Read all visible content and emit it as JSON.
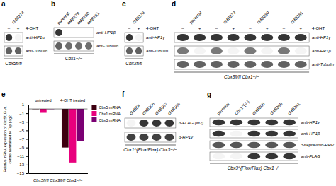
{
  "chart_data": [
    {
      "type": "blot",
      "panel": "a",
      "title": "Cbx5fl/fl",
      "categories": [
        "cMB274"
      ],
      "lane_header": "4-OHT",
      "lane_labels": [
        "–",
        "+"
      ],
      "row_labels": [
        "anti-HP1α",
        "anti-Tubulin"
      ],
      "cells": [
        [
          0.9,
          0.05
        ],
        [
          0.7,
          0.7
        ]
      ],
      "clim": [
        0,
        1
      ]
    },
    {
      "type": "blot",
      "panel": "b",
      "title": "Cbx1−/−",
      "categories": [
        "parental",
        "cMB279",
        "cMB280",
        "cMB281"
      ],
      "row_labels": [
        "anti-HP1β",
        "anti-Tubulin"
      ],
      "cells": [
        [
          0.9,
          0.0,
          0.0,
          0.0
        ],
        [
          0.7,
          0.65,
          0.65,
          0.65
        ]
      ],
      "clim": [
        0,
        1
      ]
    },
    {
      "type": "blot",
      "panel": "c",
      "title": "Cbx3fl/fl",
      "categories": [
        "cMB278"
      ],
      "lane_header": "4-OHT",
      "lane_labels": [
        "–",
        "+"
      ],
      "row_labels": [
        "anti-HP1γ",
        "anti-Tubulin"
      ],
      "cells": [
        [
          0.9,
          0.05
        ],
        [
          0.7,
          0.7
        ]
      ],
      "clim": [
        0,
        1
      ]
    },
    {
      "type": "blot",
      "panel": "d",
      "title": "Cbx3fl/fl Cbx1−/−",
      "categories": [
        "parental",
        "cMB279",
        "cMB280",
        "cMB281"
      ],
      "lane_header": "4-OHT",
      "lane_labels": [
        "–",
        "+",
        "–",
        "+",
        "–",
        "+",
        "–",
        "+"
      ],
      "row_labels": [
        "anti-HP1γ",
        "anti-HP1β",
        "anti-Tubulin"
      ],
      "cells": [
        [
          0.9,
          0.9,
          0.9,
          0.9,
          0.9,
          0.9,
          0.9,
          0.9
        ],
        [
          0.6,
          0.05,
          0.6,
          0.05,
          0.6,
          0.05,
          0.6,
          0.05
        ],
        [
          0.7,
          0.7,
          0.7,
          0.7,
          0.7,
          0.7,
          0.7,
          0.7
        ]
      ],
      "clim": [
        0,
        1
      ]
    },
    {
      "type": "bar",
      "panel": "e",
      "categories": [
        "untreated",
        "4-OHT treated"
      ],
      "series": [
        {
          "name": "Cbx5 mRNA",
          "color": "#3d0010",
          "values": [
            -0.05,
            -9.0
          ]
        },
        {
          "name": "Cbx1 mRNA",
          "color": "#e8007d",
          "values": [
            -0.9,
            -12.5
          ]
        },
        {
          "name": "Cbx3 mRNA",
          "color": "#7b0073",
          "values": [
            -0.05,
            -7.5
          ]
        }
      ],
      "ylim": [
        -15,
        1
      ],
      "yticks": [
        -15,
        -13,
        -11,
        -9,
        -7,
        -5,
        -3,
        -1,
        1
      ],
      "ylabel": "Relative mRNA expression of Cbx5/1/3 vs.\ncontrol normalised to Top (log2)",
      "xlabel": "Cbx5fl/fl Cbx3fl/fl Cbx1−/−",
      "legend": "upper right"
    },
    {
      "type": "blot",
      "panel": "f",
      "title": "Cbx1^{Flox/Flax} Cbx3−/−",
      "categories": [
        "cMB56",
        "cMB106",
        "cMB107",
        "cMB108"
      ],
      "row_labels": [
        "α-FLAG (M2)",
        "α-HP1γ"
      ],
      "cells": [
        [
          0.05,
          0.9,
          0.9,
          0.9
        ],
        [
          0.85,
          0.85,
          0.85,
          0.85
        ]
      ],
      "clim": [
        0,
        1
      ]
    },
    {
      "type": "blot",
      "panel": "g",
      "title": "Cbx3^{Flox/Flax} Cbx1−/−",
      "categories": [
        "parental",
        "Cbx1^{-/-}",
        "cMB205",
        "cMB265",
        "cMB281"
      ],
      "row_labels": [
        "anti-HP1γ",
        "anti-HP1β",
        "Streptavidin-HRP",
        "anti-FLAG"
      ],
      "cells": [
        [
          0.9,
          0.9,
          0.9,
          0.9,
          0.9
        ],
        [
          0.9,
          0.05,
          0.9,
          0.9,
          0.9
        ],
        [
          0.75,
          0.75,
          0.75,
          0.75,
          0.75
        ],
        [
          0.05,
          0.05,
          0.9,
          0.9,
          0.9
        ]
      ],
      "clim": [
        0,
        1
      ]
    }
  ]
}
